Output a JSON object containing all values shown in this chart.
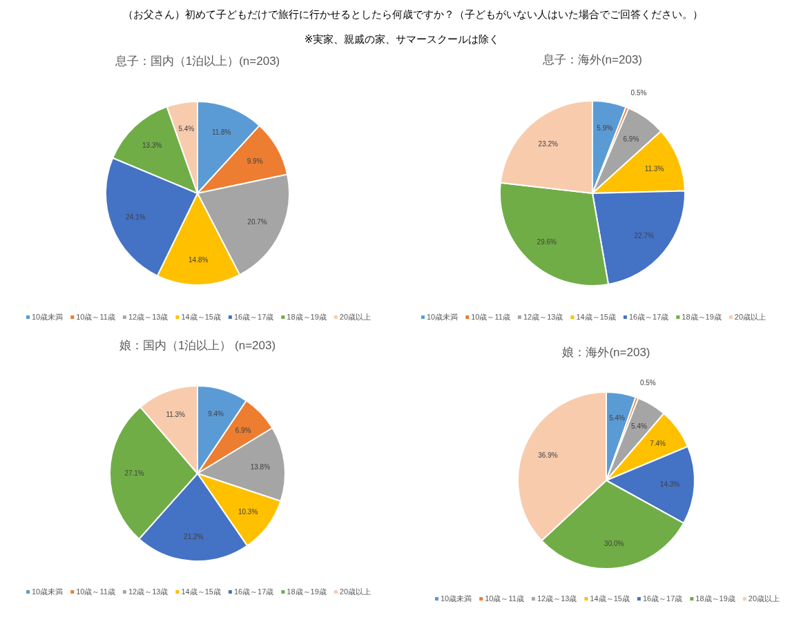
{
  "chart_data": [
    {
      "type": "other",
      "title": "（お父さん）初めて子どもだけで旅行に行かせるとしたら何歳ですか？（子どもがいない人はいた場合でご回答ください。）",
      "subtitle": "※実家、親戚の家、サマースクールは除く"
    },
    {
      "type": "pie",
      "title": "息子：国内（1泊以上）(n=203)",
      "categories": [
        "10歳未満",
        "10歳～11歳",
        "12歳～13歳",
        "14歳～15歳",
        "16歳～17歳",
        "18歳～19歳",
        "20歳以上"
      ],
      "values": [
        11.8,
        9.9,
        20.7,
        14.8,
        24.1,
        13.3,
        5.4
      ],
      "value_labels": [
        "11.8%",
        "9.9%",
        "20.7%",
        "14.8%",
        "24.1%",
        "13.3%",
        "5.4%"
      ],
      "colors": [
        "#5b9bd5",
        "#ed7d31",
        "#a5a5a5",
        "#ffc000",
        "#4472c4",
        "#70ad47",
        "#f8cbad"
      ],
      "legend": "bottom"
    },
    {
      "type": "pie",
      "title": "息子：海外(n=203)",
      "categories": [
        "10歳未満",
        "10歳～11歳",
        "12歳～13歳",
        "14歳～15歳",
        "16歳～17歳",
        "18歳～19歳",
        "20歳以上"
      ],
      "values": [
        5.9,
        0.5,
        6.9,
        11.3,
        22.7,
        29.6,
        23.2
      ],
      "value_labels": [
        "5.9%",
        "0.5%",
        "6.9%",
        "11.3%",
        "22.7%",
        "29.6%",
        "23.2%"
      ],
      "colors": [
        "#5b9bd5",
        "#ed7d31",
        "#a5a5a5",
        "#ffc000",
        "#4472c4",
        "#70ad47",
        "#f8cbad"
      ],
      "legend": "bottom"
    },
    {
      "type": "pie",
      "title": "娘：国内（1泊以上） (n=203)",
      "categories": [
        "10歳未満",
        "10歳～11歳",
        "12歳～13歳",
        "14歳～15歳",
        "16歳～17歳",
        "18歳～19歳",
        "20歳以上"
      ],
      "values": [
        9.4,
        6.9,
        13.8,
        10.3,
        21.2,
        27.1,
        11.3
      ],
      "value_labels": [
        "9.4%",
        "6.9%",
        "13.8%",
        "10.3%",
        "21.2%",
        "27.1%",
        "11.3%"
      ],
      "colors": [
        "#5b9bd5",
        "#ed7d31",
        "#a5a5a5",
        "#ffc000",
        "#4472c4",
        "#70ad47",
        "#f8cbad"
      ],
      "legend": "bottom"
    },
    {
      "type": "pie",
      "title": "娘：海外(n=203)",
      "categories": [
        "10歳未満",
        "10歳～11歳",
        "12歳～13歳",
        "14歳～15歳",
        "16歳～17歳",
        "18歳～19歳",
        "20歳以上"
      ],
      "values": [
        5.4,
        0.5,
        5.4,
        7.4,
        14.3,
        30.0,
        36.9
      ],
      "value_labels": [
        "5.4%",
        "0.5%",
        "5.4%",
        "7.4%",
        "14.3%",
        "30.0%",
        "36.9%"
      ],
      "colors": [
        "#5b9bd5",
        "#ed7d31",
        "#a5a5a5",
        "#ffc000",
        "#4472c4",
        "#70ad47",
        "#f8cbad"
      ],
      "legend": "bottom"
    }
  ]
}
